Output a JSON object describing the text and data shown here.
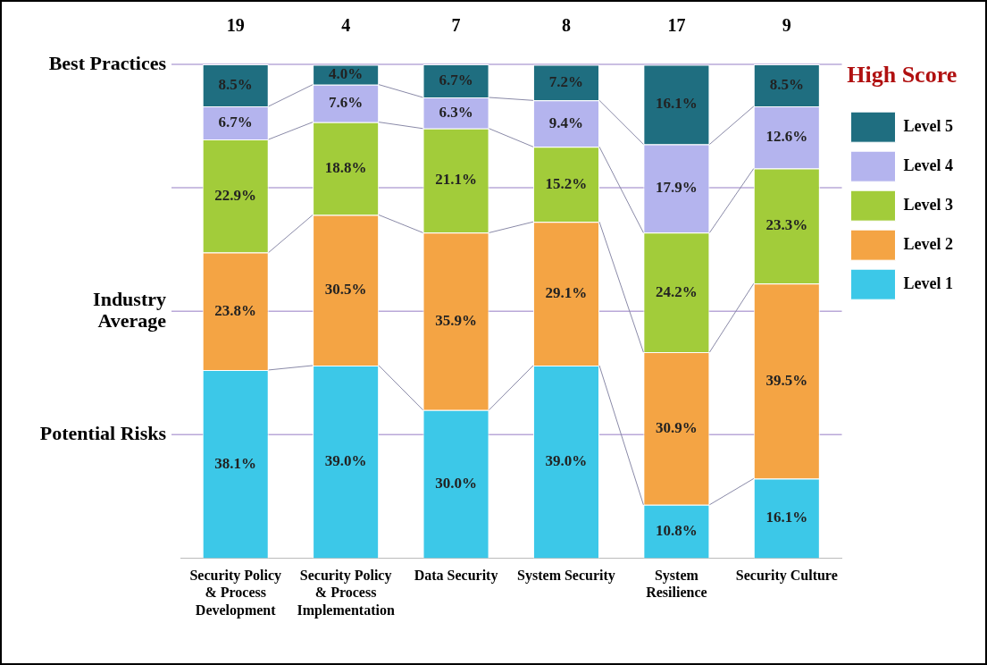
{
  "chart_data": {
    "type": "bar",
    "stacked": true,
    "categories": [
      "Security Policy & Process Development",
      "Security Policy & Process Implementation",
      "Data Security",
      "System Security",
      "System Resilience",
      "Security Culture"
    ],
    "series": [
      {
        "name": "Level 1",
        "color": "#3cc8e8",
        "values": [
          38.1,
          39.0,
          30.0,
          39.0,
          10.8,
          16.1
        ],
        "value_labels": [
          "38.1%",
          "39.0%",
          "30.0%",
          "39.0%",
          "10.8%",
          "16.1%"
        ]
      },
      {
        "name": "Level 2",
        "color": "#f4a444",
        "values": [
          23.8,
          30.5,
          35.9,
          29.1,
          30.9,
          39.5
        ],
        "value_labels": [
          "23.8%",
          "30.5%",
          "35.9%",
          "29.1%",
          "30.9%",
          "39.5%"
        ]
      },
      {
        "name": "Level 3",
        "color": "#a2cc3a",
        "values": [
          22.9,
          18.8,
          21.1,
          15.2,
          24.2,
          23.3
        ],
        "value_labels": [
          "22.9%",
          "18.8%",
          "21.1%",
          "15.2%",
          "24.2%",
          "23.3%"
        ]
      },
      {
        "name": "Level 4",
        "color": "#b4b4ee",
        "values": [
          6.7,
          7.6,
          6.3,
          9.4,
          17.9,
          12.6
        ],
        "value_labels": [
          "6.7%",
          "7.6%",
          "6.3%",
          "9.4%",
          "17.9%",
          "12.6%"
        ]
      },
      {
        "name": "Level 5",
        "color": "#1f6e80",
        "values": [
          8.5,
          4.0,
          6.7,
          7.2,
          16.1,
          8.5
        ],
        "value_labels": [
          "8.5%",
          "4.0%",
          "6.7%",
          "7.2%",
          "16.1%",
          "8.5%"
        ]
      }
    ],
    "annotations": [
      "19",
      "4",
      "7",
      "8",
      "17",
      "9"
    ],
    "legend_title": "High Score",
    "legend": "top right",
    "ylim": [
      0,
      100
    ],
    "tick_labels": "x",
    "ref_lines": [
      {
        "axis": "y",
        "value": 25,
        "label": "Potential Risks"
      },
      {
        "axis": "y",
        "value": 50,
        "label": "Industry Average"
      },
      {
        "axis": "y",
        "value": 75,
        "label": null
      },
      {
        "axis": "y",
        "value": 100,
        "label": "Best Practices"
      }
    ]
  }
}
